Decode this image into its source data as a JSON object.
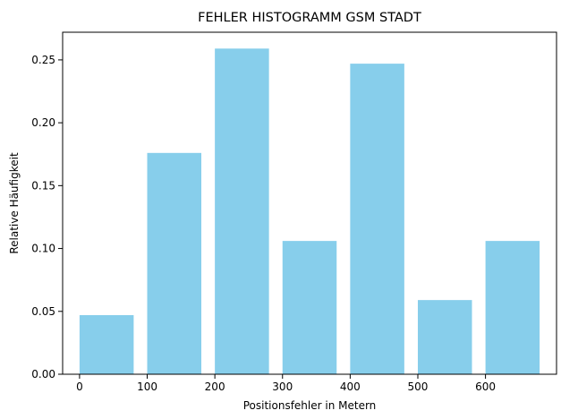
{
  "chart_data": {
    "type": "bar",
    "title": "FEHLER HISTOGRAMM GSM STADT",
    "xlabel": "Positionsfehler in Metern",
    "ylabel": "Relative Häufigkeit",
    "x": [
      0,
      100,
      200,
      300,
      400,
      500,
      600
    ],
    "bar_width": 80,
    "values": [
      0.047,
      0.176,
      0.259,
      0.106,
      0.247,
      0.059,
      0.106
    ],
    "xlim": [
      -25,
      705
    ],
    "ylim": [
      0,
      0.272
    ],
    "xticks": [
      "0",
      "100",
      "200",
      "300",
      "400",
      "500",
      "600"
    ],
    "yticks": [
      "0.00",
      "0.05",
      "0.10",
      "0.15",
      "0.20",
      "0.25"
    ],
    "grid": false,
    "legend": "none",
    "bar_color": "#87CEEB"
  }
}
